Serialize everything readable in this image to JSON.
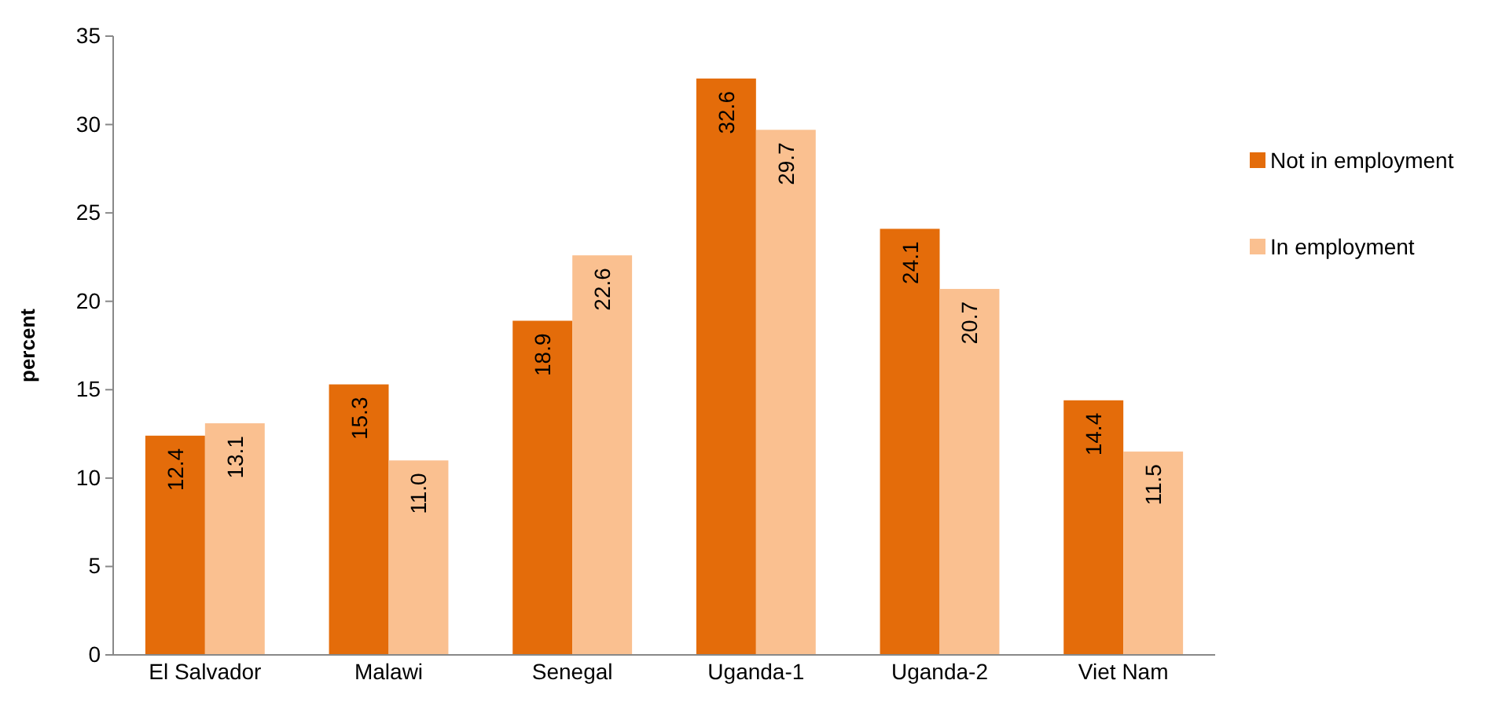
{
  "chart_data": {
    "type": "bar",
    "ylabel": "percent",
    "categories": [
      "El Salvador",
      "Malawi",
      "Senegal",
      "Uganda-1",
      "Uganda-2",
      "Viet Nam"
    ],
    "series": [
      {
        "name": "Not in employment",
        "color": "#e46c0a",
        "values": [
          12.4,
          15.3,
          18.9,
          32.6,
          24.1,
          14.4
        ],
        "value_labels": [
          "12.4",
          "15.3",
          "18.9",
          "32.6",
          "24.1",
          "14.4"
        ]
      },
      {
        "name": "In employment",
        "color": "#fac090",
        "values": [
          13.1,
          11.0,
          22.6,
          29.7,
          20.7,
          11.5
        ],
        "value_labels": [
          "13.1",
          "11.0",
          "22.6",
          "29.7",
          "20.7",
          "11.5"
        ]
      }
    ],
    "ylim": [
      0,
      35
    ],
    "yticks": [
      0,
      5,
      10,
      15,
      20,
      25,
      30,
      35
    ],
    "legend": "right",
    "grid": false
  }
}
